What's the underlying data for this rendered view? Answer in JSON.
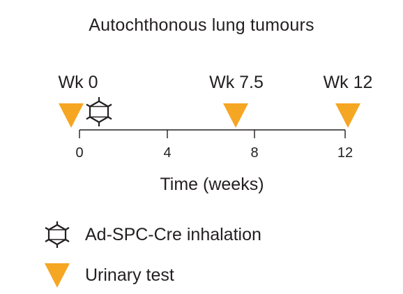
{
  "title": "Autochthonous lung tumours",
  "timepoints": [
    {
      "label": "Wk 0",
      "week": 0
    },
    {
      "label": "Wk 7.5",
      "week": 7.5
    },
    {
      "label": "Wk 12",
      "week": 12
    }
  ],
  "axis": {
    "label": "Time (weeks)",
    "ticks": [
      "0",
      "4",
      "8",
      "12"
    ],
    "range": [
      0,
      12
    ]
  },
  "events": {
    "urinary_test_weeks": [
      0,
      7.5,
      12
    ],
    "inhalation_week": 0
  },
  "legend": {
    "inhalation_label": "Ad-SPC-Cre inhalation",
    "inhalation_icon": "virus-icon",
    "urinary_label": "Urinary test",
    "urinary_icon": "orange-triangle-icon"
  },
  "colors": {
    "triangle": "#f5a623",
    "text": "#231f20",
    "axis": "#231f20"
  }
}
